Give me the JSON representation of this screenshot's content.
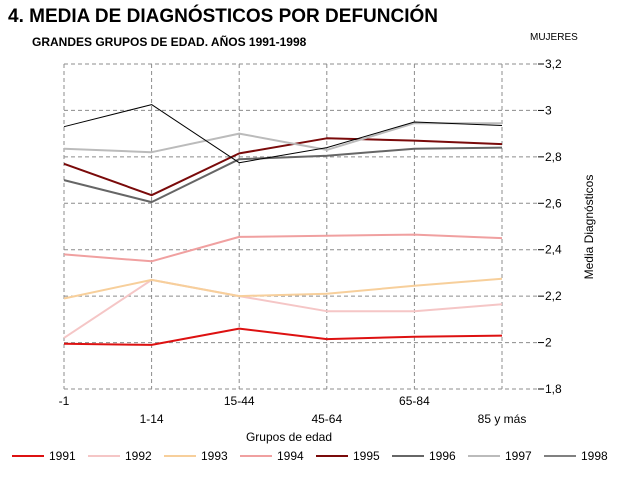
{
  "header": {
    "title": "4. MEDIA DE DIAGNÓSTICOS POR DEFUNCIÓN",
    "subtitle": "GRANDES  GRUPOS DE EDAD. AÑOS 1991-1998",
    "corner_label": "MUJERES"
  },
  "chart_data": {
    "type": "line",
    "title": "4. MEDIA DE DIAGNÓSTICOS POR DEFUNCIÓN",
    "subtitle": "GRANDES  GRUPOS DE EDAD. AÑOS 1991-1998",
    "xlabel": "Grupos de edad",
    "ylabel": "Media Diagnósticos",
    "categories": [
      "-1",
      "1-14",
      "15-44",
      "45-64",
      "65-84",
      "85 y más"
    ],
    "ylim": [
      1.8,
      3.2
    ],
    "yticks": [
      1.8,
      2,
      2.2,
      2.4,
      2.6,
      2.8,
      3,
      3.2
    ],
    "ytick_labels": [
      "1,8",
      "2",
      "2,2",
      "2,4",
      "2,6",
      "2,8",
      "3",
      "3,2"
    ],
    "grid": true,
    "legend_position": "bottom",
    "series": [
      {
        "name": "1991",
        "color": "#dd1111",
        "width": 2,
        "values": [
          1.995,
          1.99,
          2.06,
          2.015,
          2.025,
          2.03
        ]
      },
      {
        "name": "1992",
        "color": "#f5c6c6",
        "width": 2,
        "values": [
          2.02,
          2.27,
          2.2,
          2.135,
          2.135,
          2.165
        ]
      },
      {
        "name": "1993",
        "color": "#f7cf9b",
        "width": 2,
        "values": [
          2.19,
          2.27,
          2.2,
          2.21,
          2.245,
          2.275
        ]
      },
      {
        "name": "1994",
        "color": "#f0a0a0",
        "width": 2,
        "values": [
          2.38,
          2.35,
          2.455,
          2.46,
          2.465,
          2.45
        ]
      },
      {
        "name": "1995",
        "color": "#7a0a0a",
        "width": 2,
        "values": [
          2.77,
          2.635,
          2.815,
          2.88,
          2.87,
          2.855
        ]
      },
      {
        "name": "1996",
        "color": "#666666",
        "width": 2,
        "values": [
          2.7,
          2.605,
          2.79,
          2.805,
          2.835,
          2.84
        ]
      },
      {
        "name": "1997",
        "color": "#bbbbbb",
        "width": 2,
        "values": [
          2.835,
          2.82,
          2.9,
          2.83,
          2.945,
          2.945
        ]
      },
      {
        "name": "1998",
        "color": "#000000",
        "width": 1,
        "values": [
          2.93,
          3.025,
          2.775,
          2.84,
          2.95,
          2.935
        ]
      }
    ]
  }
}
